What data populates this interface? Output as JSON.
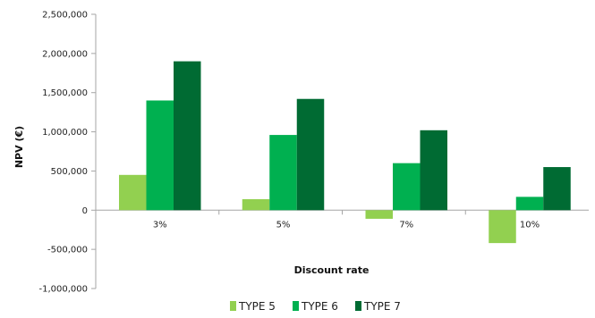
{
  "chart_data": {
    "type": "bar",
    "categories": [
      "3%",
      "5%",
      "7%",
      "10%"
    ],
    "series": [
      {
        "name": "TYPE 5",
        "values": [
          450000,
          140000,
          -110000,
          -420000
        ],
        "color": "#92d050"
      },
      {
        "name": "TYPE 6",
        "values": [
          1400000,
          960000,
          600000,
          170000
        ],
        "color": "#00b050"
      },
      {
        "name": "TYPE 7",
        "values": [
          1900000,
          1420000,
          1020000,
          550000
        ],
        "color": "#006b33"
      }
    ],
    "title": "",
    "xlabel": "Discount rate",
    "ylabel": "NPV (€)",
    "ylim": [
      -1000000,
      2500000
    ],
    "yticks": [
      -1000000,
      -500000,
      0,
      500000,
      1000000,
      1500000,
      2000000,
      2500000
    ],
    "ytick_labels": [
      "-1,000,000",
      "-500,000",
      "0",
      "500,000",
      "1,000,000",
      "1,500,000",
      "2,000,000",
      "2,500,000"
    ],
    "grid": false,
    "legend": "bottom"
  }
}
